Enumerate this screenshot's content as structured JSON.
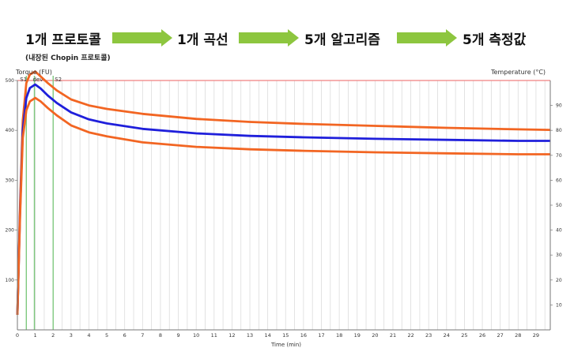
{
  "flow": {
    "steps": [
      "1개 프로토콜",
      "1개 곡선",
      "5개 알고리즘",
      "5개 측정값"
    ],
    "subtitle": "(내장된 Chopin 프로토콜)",
    "arrow_color": "#8dc63f"
  },
  "chart_data": {
    "type": "line",
    "ylabel": "Torque (FU)",
    "y2label": "Temperature (°C)",
    "xlabel": "Time (min)",
    "xlim": [
      0,
      30
    ],
    "ylim": [
      0,
      500
    ],
    "y2lim": [
      0,
      100
    ],
    "x_ticks": [
      0,
      1,
      2,
      3,
      4,
      5,
      6,
      7,
      8,
      9,
      10,
      11,
      12,
      13,
      14,
      15,
      16,
      17,
      18,
      19,
      20,
      21,
      22,
      23,
      24,
      25,
      26,
      27,
      28,
      29
    ],
    "y_ticks": [
      100,
      200,
      300,
      400,
      500
    ],
    "y2_ticks": [
      10,
      20,
      30,
      40,
      50,
      60,
      70,
      80,
      90
    ],
    "grid": true,
    "reference_line": {
      "y": 500,
      "color": "#f08080"
    },
    "markers": [
      {
        "label": "S1",
        "x": 0.5
      },
      {
        "label": "dev",
        "x": 0.95
      },
      {
        "label": "S2",
        "x": 2.0
      }
    ],
    "series": [
      {
        "color": "#f26522",
        "x": [
          0,
          0.15,
          0.3,
          0.5,
          0.7,
          1.0,
          1.3,
          1.7,
          2.2,
          3,
          4,
          5,
          7,
          10,
          13,
          16,
          20,
          24,
          28,
          29.8
        ],
        "y": [
          30,
          250,
          420,
          495,
          512,
          518,
          508,
          495,
          480,
          462,
          450,
          443,
          433,
          423,
          417,
          413,
          409,
          405,
          402,
          401
        ]
      },
      {
        "color": "#1f1fdb",
        "x": [
          0,
          0.15,
          0.3,
          0.5,
          0.7,
          1.0,
          1.3,
          1.7,
          2.2,
          3,
          4,
          5,
          7,
          10,
          13,
          16,
          20,
          24,
          28,
          29.8
        ],
        "y": [
          30,
          240,
          400,
          465,
          485,
          492,
          484,
          470,
          455,
          436,
          422,
          414,
          403,
          394,
          389,
          386,
          383,
          381,
          379,
          379
        ]
      },
      {
        "color": "#f26522",
        "x": [
          0,
          0.15,
          0.3,
          0.5,
          0.7,
          1.0,
          1.3,
          1.7,
          2.2,
          3,
          4,
          5,
          7,
          10,
          13,
          16,
          20,
          24,
          28,
          29.8
        ],
        "y": [
          30,
          230,
          385,
          440,
          458,
          465,
          458,
          445,
          430,
          410,
          396,
          388,
          376,
          367,
          362,
          359,
          356,
          354,
          352,
          352
        ]
      }
    ]
  }
}
